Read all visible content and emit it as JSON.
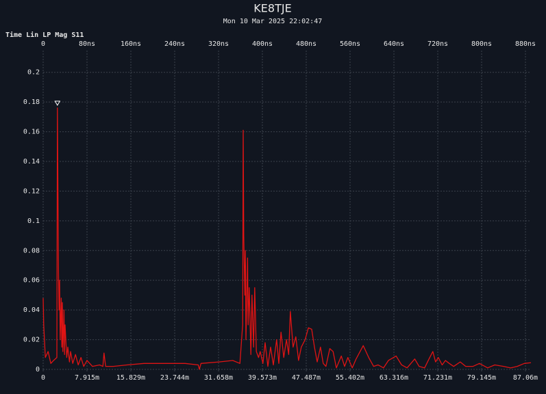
{
  "chart_data": {
    "type": "line",
    "title": "KE8TJE",
    "subtitle": "Mon 10 Mar 2025 22:02:47",
    "ylabel": "Time Lin LP Mag S11",
    "xlim": [
      0,
      890
    ],
    "xticks": [
      0,
      {
        "value": 80,
        "label": "80ns"
      },
      {
        "value": 160,
        "label": "160ns"
      },
      {
        "value": 240,
        "label": "240ns"
      },
      {
        "value": 320,
        "label": "320ns"
      },
      {
        "value": 400,
        "label": "400ns"
      },
      {
        "value": 480,
        "label": "480ns"
      },
      {
        "value": 560,
        "label": "560ns"
      },
      {
        "value": 640,
        "label": "640ns"
      },
      {
        "value": 720,
        "label": "720ns"
      },
      {
        "value": 800,
        "label": "800ns"
      },
      {
        "value": 880,
        "label": "880ns"
      }
    ],
    "x2lim": [
      0,
      88.05
    ],
    "x2ticks": [
      0,
      {
        "value": 7.915,
        "label": "7.915m"
      },
      {
        "value": 15.829,
        "label": "15.829m"
      },
      {
        "value": 23.744,
        "label": "23.744m"
      },
      {
        "value": 31.658,
        "label": "31.658m"
      },
      {
        "value": 39.573,
        "label": "39.573m"
      },
      {
        "value": 47.487,
        "label": "47.487m"
      },
      {
        "value": 55.402,
        "label": "55.402m"
      },
      {
        "value": 63.316,
        "label": "63.316m"
      },
      {
        "value": 71.231,
        "label": "71.231m"
      },
      {
        "value": 79.145,
        "label": "79.145m"
      },
      {
        "value": 87.06,
        "label": "87.06m"
      }
    ],
    "ylim": [
      0,
      0.21
    ],
    "yticks": [
      0,
      0.02,
      0.04,
      0.06,
      0.08,
      0.1,
      0.12,
      0.14,
      0.16,
      0.18,
      0.2
    ],
    "grid": true,
    "marker": {
      "x": 26,
      "y": 0.176
    },
    "series": [
      {
        "color": "#e01414",
        "x": [
          0,
          1,
          4,
          9,
          14,
          19,
          25,
          26,
          28,
          29,
          30,
          31,
          33,
          34,
          35,
          36,
          38,
          39,
          40,
          43,
          45,
          48,
          50,
          54,
          59,
          64,
          69,
          74,
          80,
          90,
          103,
          109,
          111,
          114,
          128,
          153,
          184,
          221,
          259,
          283,
          285,
          288,
          321,
          346,
          359,
          364,
          365,
          366,
          368,
          369,
          370,
          373,
          374,
          376,
          379,
          381,
          384,
          386,
          389,
          393,
          396,
          401,
          405,
          410,
          415,
          420,
          426,
          430,
          434,
          439,
          444,
          448,
          451,
          456,
          461,
          466,
          471,
          478,
          484,
          490,
          495,
          500,
          506,
          511,
          516,
          523,
          529,
          535,
          544,
          550,
          556,
          564,
          571,
          584,
          594,
          603,
          611,
          621,
          630,
          644,
          654,
          664,
          678,
          686,
          696,
          704,
          711,
          716,
          721,
          728,
          734,
          741,
          749,
          761,
          771,
          784,
          796,
          811,
          824,
          840,
          853,
          865,
          878,
          890
        ],
        "values": [
          0.048,
          0.03,
          0.008,
          0.012,
          0.004,
          0.006,
          0.008,
          0.176,
          0.065,
          0.04,
          0.06,
          0.02,
          0.048,
          0.015,
          0.045,
          0.012,
          0.04,
          0.01,
          0.03,
          0.008,
          0.015,
          0.005,
          0.012,
          0.004,
          0.01,
          0.003,
          0.008,
          0.002,
          0.006,
          0.002,
          0.003,
          0.002,
          0.011,
          0.002,
          0.002,
          0.003,
          0.004,
          0.004,
          0.004,
          0.003,
          0.0,
          0.004,
          0.005,
          0.006,
          0.004,
          0.03,
          0.161,
          0.09,
          0.05,
          0.08,
          0.02,
          0.075,
          0.03,
          0.055,
          0.01,
          0.05,
          0.015,
          0.055,
          0.012,
          0.008,
          0.012,
          0.004,
          0.018,
          0.002,
          0.015,
          0.003,
          0.02,
          0.004,
          0.025,
          0.008,
          0.02,
          0.01,
          0.039,
          0.015,
          0.022,
          0.006,
          0.015,
          0.02,
          0.028,
          0.027,
          0.015,
          0.005,
          0.015,
          0.004,
          0.002,
          0.014,
          0.012,
          0.001,
          0.009,
          0.002,
          0.008,
          0.001,
          0.007,
          0.016,
          0.008,
          0.002,
          0.003,
          0.001,
          0.006,
          0.009,
          0.003,
          0.001,
          0.007,
          0.002,
          0.001,
          0.007,
          0.012,
          0.005,
          0.008,
          0.003,
          0.006,
          0.004,
          0.002,
          0.005,
          0.002,
          0.002,
          0.004,
          0.001,
          0.003,
          0.002,
          0.001,
          0.002,
          0.004,
          0.0045
        ]
      }
    ]
  }
}
